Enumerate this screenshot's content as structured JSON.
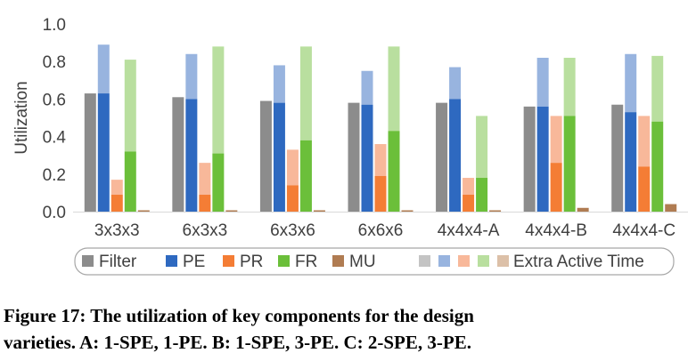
{
  "caption": {
    "line1": "Figure 17: The utilization of key components for the design",
    "line2": "varieties. A: 1-SPE, 1-PE. B: 1-SPE, 3-PE. C: 2-SPE, 3-PE."
  },
  "colors": {
    "Filter": "#8c8c8c",
    "PE": "#2e69c0",
    "PR": "#f47d35",
    "FR": "#6bbf3a",
    "MU": "#b07c52",
    "Filter_extra": "#c4c4c4",
    "PE_extra": "#98b4df",
    "PR_extra": "#f8b89a",
    "FR_extra": "#b9df9f",
    "MU_extra": "#dcc0a8"
  },
  "chart_data": {
    "type": "bar",
    "ylabel": "Utilization",
    "ylim": [
      0,
      1.0
    ],
    "yticks": [
      "0.0",
      "0.2",
      "0.4",
      "0.6",
      "0.8",
      "1.0"
    ],
    "grid": false,
    "legend_position": "bottom",
    "categories": [
      "3x3x3",
      "6x3x3",
      "6x3x6",
      "6x6x6",
      "4x4x4-A",
      "4x4x4-B",
      "4x4x4-C"
    ],
    "series": [
      {
        "name": "Filter",
        "values": [
          0.63,
          0.61,
          0.59,
          0.58,
          0.58,
          0.56,
          0.57
        ],
        "extra_total": [
          0.63,
          0.61,
          0.59,
          0.58,
          0.58,
          0.56,
          0.57
        ]
      },
      {
        "name": "PE",
        "values": [
          0.63,
          0.6,
          0.58,
          0.57,
          0.6,
          0.56,
          0.53
        ],
        "extra_total": [
          0.89,
          0.84,
          0.78,
          0.75,
          0.77,
          0.82,
          0.84
        ]
      },
      {
        "name": "PR",
        "values": [
          0.09,
          0.09,
          0.14,
          0.19,
          0.09,
          0.26,
          0.24
        ],
        "extra_total": [
          0.17,
          0.26,
          0.33,
          0.36,
          0.18,
          0.51,
          0.51
        ]
      },
      {
        "name": "FR",
        "values": [
          0.32,
          0.31,
          0.38,
          0.43,
          0.18,
          0.51,
          0.48
        ],
        "extra_total": [
          0.81,
          0.88,
          0.88,
          0.88,
          0.51,
          0.82,
          0.83
        ]
      },
      {
        "name": "MU",
        "values": [
          0.0,
          0.0,
          0.0,
          0.0,
          0.0,
          0.02,
          0.04
        ],
        "extra_total": [
          0.0,
          0.0,
          0.0,
          0.0,
          0.0,
          0.02,
          0.04
        ]
      }
    ],
    "legend": {
      "items": [
        "Filter",
        "PE",
        "PR",
        "FR",
        "MU"
      ],
      "extra_label": "Extra Active Time"
    }
  }
}
